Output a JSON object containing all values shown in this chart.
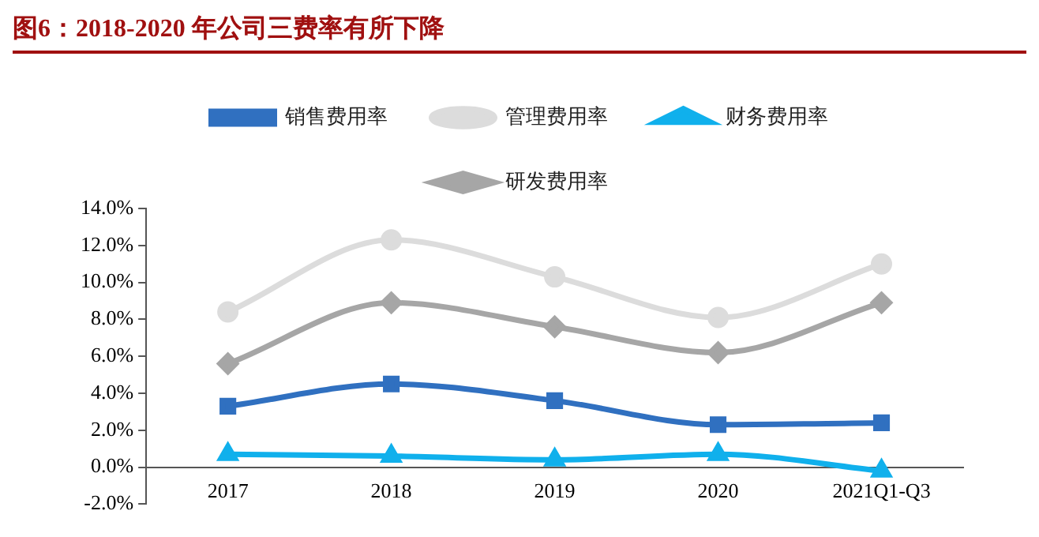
{
  "chart_data": {
    "type": "line",
    "title": "图6：2018-2020 年公司三费率有所下降",
    "categories": [
      "2017",
      "2018",
      "2019",
      "2020",
      "2021Q1-Q3"
    ],
    "series": [
      {
        "name": "销售费用率",
        "color": "#3070c0",
        "marker": "square",
        "values": [
          3.3,
          4.5,
          3.6,
          2.3,
          2.4
        ]
      },
      {
        "name": "管理费用率",
        "color": "#dcdcdc",
        "marker": "circle",
        "values": [
          8.4,
          12.3,
          10.3,
          8.1,
          11.0
        ]
      },
      {
        "name": "财务费用率",
        "color": "#10b0ec",
        "marker": "triangle",
        "values": [
          0.7,
          0.6,
          0.4,
          0.7,
          -0.2
        ]
      },
      {
        "name": "研发费用率",
        "color": "#a6a6a6",
        "marker": "diamond",
        "values": [
          5.6,
          8.9,
          7.6,
          6.2,
          8.9
        ]
      }
    ],
    "ylim": [
      -2,
      14
    ],
    "yticks": [
      {
        "value": -2,
        "label": "-2.0%"
      },
      {
        "value": 0,
        "label": "0.0%"
      },
      {
        "value": 2,
        "label": "2.0%"
      },
      {
        "value": 4,
        "label": "4.0%"
      },
      {
        "value": 6,
        "label": "6.0%"
      },
      {
        "value": 8,
        "label": "8.0%"
      },
      {
        "value": 10,
        "label": "10.0%"
      },
      {
        "value": 12,
        "label": "12.0%"
      },
      {
        "value": 14,
        "label": "14.0%"
      }
    ],
    "grid": false,
    "legend": "top",
    "line_style": "solid"
  }
}
